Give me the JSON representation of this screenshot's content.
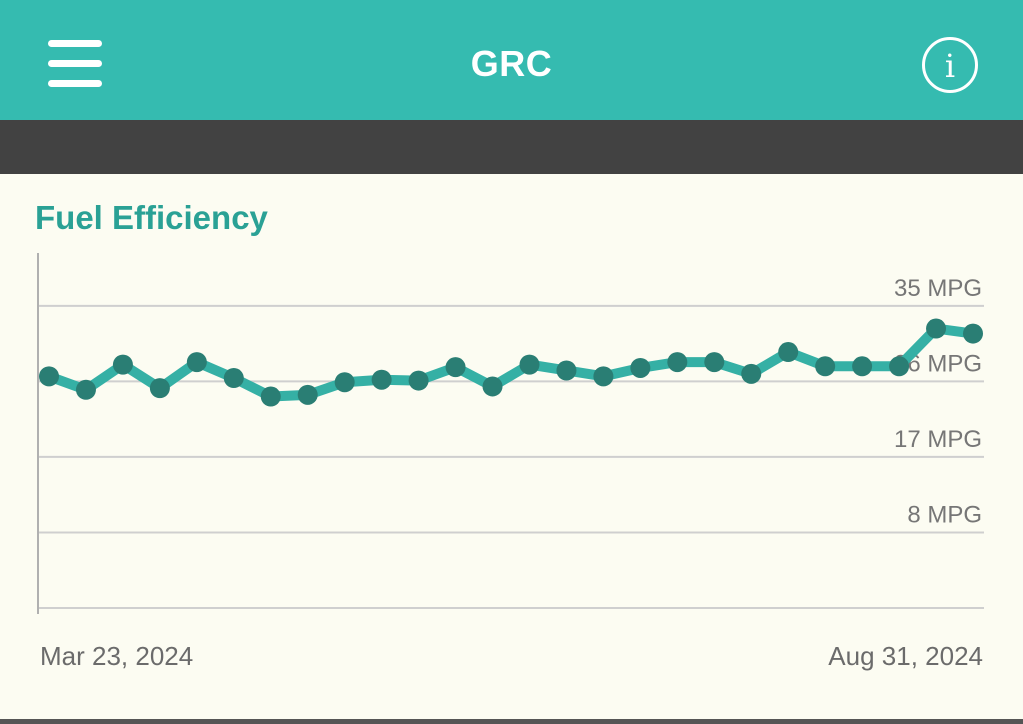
{
  "app": {
    "title": "GRC",
    "menu_icon": "hamburger-menu-icon",
    "info_icon": "info-icon",
    "info_glyph": "i"
  },
  "colors": {
    "appbar": "#35bbb0",
    "subbar": "#424242",
    "background": "#fcfcf2",
    "line": "#35b0a5",
    "point": "#2a7e74",
    "title": "#2aa195",
    "grid": "#cfcfcf",
    "axis": "#b0b0b0"
  },
  "chart": {
    "title": "Fuel Efficiency",
    "start_date": "Mar 23, 2024",
    "end_date": "Aug 31, 2024"
  },
  "chart_data": {
    "type": "line",
    "title": "Fuel Efficiency",
    "ylabel": "",
    "xlabel": "",
    "y_ticks": [
      {
        "value": 8,
        "label": "8 MPG"
      },
      {
        "value": 17,
        "label": "17 MPG"
      },
      {
        "value": 26,
        "label": "26 MPG"
      },
      {
        "value": 35,
        "label": "35 MPG"
      }
    ],
    "ylim": [
      -1,
      41.3
    ],
    "x_start_label": "Mar 23, 2024",
    "x_end_label": "Aug 31, 2024",
    "grid": true,
    "series": [
      {
        "values": [
          26.6,
          25.0,
          28.0,
          25.2,
          28.3,
          26.4,
          24.2,
          24.4,
          25.9,
          26.2,
          26.1,
          27.7,
          25.4,
          28.0,
          27.3,
          26.6,
          27.6,
          28.3,
          28.3,
          26.9,
          29.5,
          27.8,
          27.8,
          27.8,
          32.3,
          31.7
        ]
      }
    ]
  }
}
